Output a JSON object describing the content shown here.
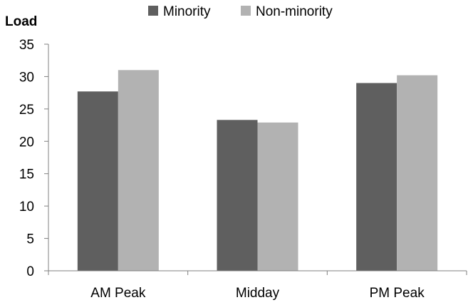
{
  "chart_data": {
    "type": "bar",
    "ylabel": "Load",
    "categories": [
      "AM Peak",
      "Midday",
      "PM Peak"
    ],
    "series": [
      {
        "name": "Minority",
        "values": [
          27.7,
          23.3,
          29.0
        ],
        "color": "#5f5f5f"
      },
      {
        "name": "Non-minority",
        "values": [
          31.0,
          22.9,
          30.2
        ],
        "color": "#b2b2b2"
      }
    ],
    "ylim": [
      0,
      35
    ],
    "yticks": [
      "0",
      "5",
      "10",
      "15",
      "20",
      "25",
      "30",
      "35"
    ],
    "grid": false,
    "legend": "top"
  }
}
